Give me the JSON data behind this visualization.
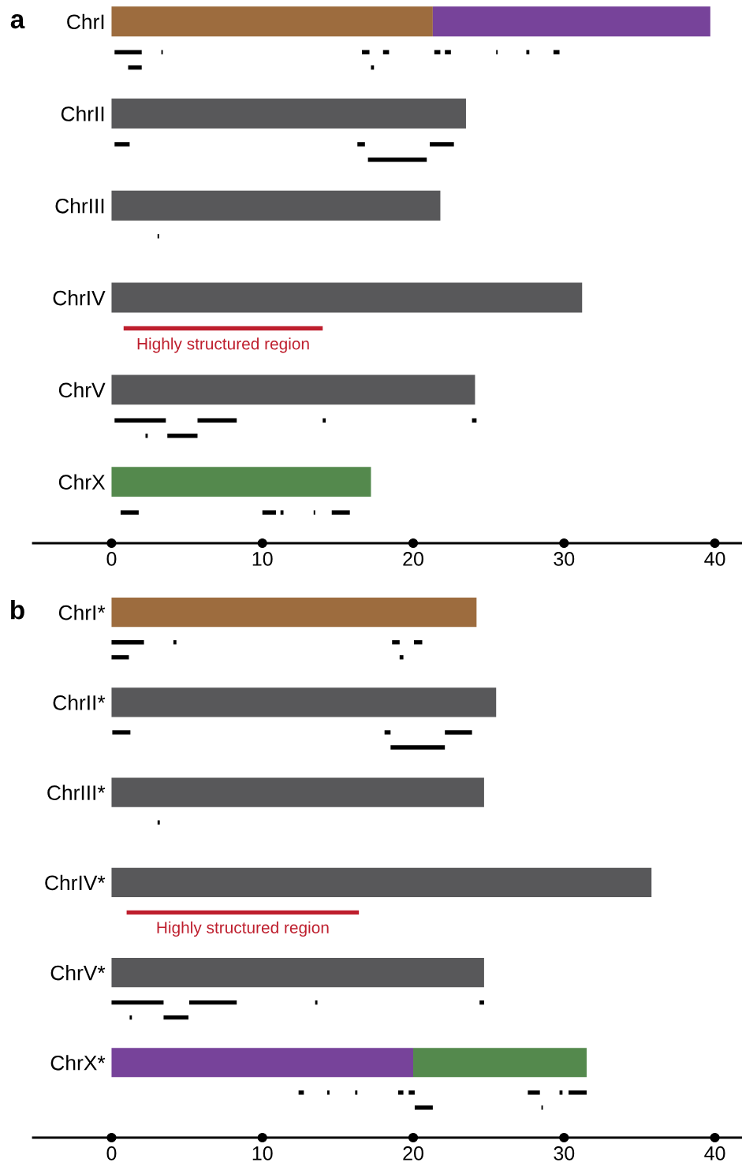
{
  "chart_data": [
    {
      "type": "bar",
      "orientation": "horizontal",
      "title": "a",
      "categories": [
        "ChrI",
        null,
        null,
        null,
        null,
        null,
        "ChrII",
        null,
        null,
        null,
        null,
        null,
        "ChrIII",
        null,
        null,
        null,
        null,
        null,
        "ChrIV",
        null,
        null,
        null,
        null,
        null,
        "ChrV",
        null,
        null,
        null,
        null,
        null,
        "ChrX",
        null,
        null
      ],
      "xlim": [
        -5.2,
        41.8
      ],
      "xticks": [
        0,
        10,
        20,
        30,
        40
      ],
      "series": [
        {
          "color": "#9d6c3e",
          "base": [
            0,
            null,
            null,
            null,
            null,
            null,
            null,
            null,
            null,
            null,
            null,
            null,
            null,
            null,
            null,
            null,
            null,
            null,
            null,
            null,
            null,
            null,
            null,
            null,
            null,
            null,
            null,
            null,
            null,
            null,
            null,
            null,
            null
          ],
          "values": [
            21.3,
            null,
            null,
            null,
            null,
            null,
            null,
            null,
            null,
            null,
            null,
            null,
            null,
            null,
            null,
            null,
            null,
            null,
            null,
            null,
            null,
            null,
            null,
            null,
            null,
            null,
            null,
            null,
            null,
            null,
            null,
            null,
            null
          ]
        },
        {
          "color": "#77439a",
          "base": [
            21.3,
            null,
            null,
            null,
            null,
            null,
            null,
            null,
            null,
            null,
            null,
            null,
            null,
            null,
            null,
            null,
            null,
            null,
            null,
            null,
            null,
            null,
            null,
            null,
            null,
            null,
            null,
            null,
            null,
            null,
            null,
            null,
            null
          ],
          "values": [
            18.4,
            null,
            null,
            null,
            null,
            null,
            null,
            null,
            null,
            null,
            null,
            null,
            null,
            null,
            null,
            null,
            null,
            null,
            null,
            null,
            null,
            null,
            null,
            null,
            null,
            null,
            null,
            null,
            null,
            null,
            null,
            null,
            null
          ]
        },
        {
          "color": "#58585a",
          "base": [
            null,
            null,
            null,
            null,
            null,
            null,
            0,
            null,
            null,
            null,
            null,
            null,
            0,
            null,
            null,
            null,
            null,
            null,
            0,
            null,
            null,
            null,
            null,
            null,
            0,
            null,
            null,
            null,
            null,
            null,
            null,
            null,
            null
          ],
          "values": [
            null,
            null,
            null,
            null,
            null,
            null,
            23.5,
            null,
            null,
            null,
            null,
            null,
            21.8,
            null,
            null,
            null,
            null,
            null,
            31.2,
            null,
            null,
            null,
            null,
            null,
            24.1,
            null,
            null,
            null,
            null,
            null,
            null,
            null,
            null
          ]
        },
        {
          "color": "#54894d",
          "base": [
            null,
            null,
            null,
            null,
            null,
            null,
            null,
            null,
            null,
            null,
            null,
            null,
            null,
            null,
            null,
            null,
            null,
            null,
            null,
            null,
            null,
            null,
            null,
            null,
            null,
            null,
            null,
            null,
            null,
            null,
            0,
            null,
            null
          ],
          "values": [
            null,
            null,
            null,
            null,
            null,
            null,
            null,
            null,
            null,
            null,
            null,
            null,
            null,
            null,
            null,
            null,
            null,
            null,
            null,
            null,
            null,
            null,
            null,
            null,
            null,
            null,
            null,
            null,
            null,
            null,
            17.2,
            null,
            null
          ]
        },
        {
          "name": "Highly structured region",
          "color": "#be1e2d",
          "base": [
            null,
            null,
            null,
            null,
            null,
            null,
            null,
            null,
            null,
            null,
            null,
            null,
            null,
            null,
            null,
            null,
            null,
            null,
            null,
            null,
            0.8,
            null,
            null,
            null,
            null,
            null,
            null,
            null,
            null,
            null,
            null,
            null,
            null
          ],
          "values": [
            null,
            null,
            null,
            null,
            null,
            null,
            null,
            null,
            null,
            null,
            null,
            null,
            null,
            null,
            null,
            null,
            null,
            null,
            null,
            null,
            13.2,
            null,
            null,
            null,
            null,
            null,
            null,
            null,
            null,
            null,
            null,
            null,
            null
          ]
        },
        {
          "color": "#000000",
          "base": [
            null,
            null,
            0.2,
            1.1,
            null,
            null,
            null,
            null,
            0.2,
            17.0,
            null,
            null,
            null,
            null,
            3.05,
            null,
            null,
            null,
            null,
            null,
            null,
            null,
            null,
            null,
            null,
            null,
            0.2,
            2.25,
            null,
            null,
            null,
            null,
            0.6
          ],
          "values": [
            null,
            null,
            1.8,
            0.9,
            null,
            null,
            null,
            null,
            1.0,
            3.9,
            null,
            null,
            null,
            null,
            0.1,
            null,
            null,
            null,
            null,
            null,
            null,
            null,
            null,
            null,
            null,
            null,
            3.4,
            0.15,
            null,
            null,
            null,
            null,
            1.2
          ]
        },
        {
          "color": "#000000",
          "base": [
            null,
            null,
            3.3,
            17.2,
            null,
            null,
            null,
            null,
            16.3,
            null,
            null,
            null,
            null,
            null,
            null,
            null,
            null,
            null,
            null,
            null,
            null,
            null,
            null,
            null,
            null,
            null,
            5.7,
            3.7,
            null,
            null,
            null,
            null,
            10.0
          ],
          "values": [
            null,
            null,
            0.1,
            0.2,
            null,
            null,
            null,
            null,
            0.5,
            null,
            null,
            null,
            null,
            null,
            null,
            null,
            null,
            null,
            null,
            null,
            null,
            null,
            null,
            null,
            null,
            null,
            2.6,
            2.0,
            null,
            null,
            null,
            null,
            0.9
          ]
        },
        {
          "color": "#000000",
          "base": [
            null,
            null,
            16.6,
            null,
            null,
            null,
            null,
            null,
            21.1,
            null,
            null,
            null,
            null,
            null,
            null,
            null,
            null,
            null,
            null,
            null,
            null,
            null,
            null,
            null,
            null,
            null,
            14.0,
            null,
            null,
            null,
            null,
            null,
            11.2
          ],
          "values": [
            null,
            null,
            0.5,
            null,
            null,
            null,
            null,
            null,
            1.6,
            null,
            null,
            null,
            null,
            null,
            null,
            null,
            null,
            null,
            null,
            null,
            null,
            null,
            null,
            null,
            null,
            null,
            0.2,
            null,
            null,
            null,
            null,
            null,
            0.2
          ]
        },
        {
          "color": "#000000",
          "base": [
            null,
            null,
            18.0,
            null,
            null,
            null,
            null,
            null,
            null,
            null,
            null,
            null,
            null,
            null,
            null,
            null,
            null,
            null,
            null,
            null,
            null,
            null,
            null,
            null,
            null,
            null,
            23.9,
            null,
            null,
            null,
            null,
            null,
            13.4
          ],
          "values": [
            null,
            null,
            0.4,
            null,
            null,
            null,
            null,
            null,
            null,
            null,
            null,
            null,
            null,
            null,
            null,
            null,
            null,
            null,
            null,
            null,
            null,
            null,
            null,
            null,
            null,
            null,
            0.3,
            null,
            null,
            null,
            null,
            null,
            0.1
          ]
        },
        {
          "color": "#000000",
          "base": [
            null,
            null,
            21.4,
            null,
            null,
            null,
            null,
            null,
            null,
            null,
            null,
            null,
            null,
            null,
            null,
            null,
            null,
            null,
            null,
            null,
            null,
            null,
            null,
            null,
            null,
            null,
            null,
            null,
            null,
            null,
            null,
            null,
            14.6
          ],
          "values": [
            null,
            null,
            0.4,
            null,
            null,
            null,
            null,
            null,
            null,
            null,
            null,
            null,
            null,
            null,
            null,
            null,
            null,
            null,
            null,
            null,
            null,
            null,
            null,
            null,
            null,
            null,
            null,
            null,
            null,
            null,
            null,
            null,
            1.2
          ]
        },
        {
          "color": "#000000",
          "base": [
            null,
            null,
            22.1,
            null,
            null,
            null,
            null,
            null,
            null,
            null,
            null,
            null,
            null,
            null,
            null,
            null,
            null,
            null,
            null,
            null,
            null,
            null,
            null,
            null,
            null,
            null,
            null,
            null,
            null,
            null,
            null,
            null,
            null
          ],
          "values": [
            null,
            null,
            0.4,
            null,
            null,
            null,
            null,
            null,
            null,
            null,
            null,
            null,
            null,
            null,
            null,
            null,
            null,
            null,
            null,
            null,
            null,
            null,
            null,
            null,
            null,
            null,
            null,
            null,
            null,
            null,
            null,
            null,
            null
          ]
        },
        {
          "color": "#000000",
          "base": [
            null,
            null,
            25.5,
            null,
            null,
            null,
            null,
            null,
            null,
            null,
            null,
            null,
            null,
            null,
            null,
            null,
            null,
            null,
            null,
            null,
            null,
            null,
            null,
            null,
            null,
            null,
            null,
            null,
            null,
            null,
            null,
            null,
            null
          ],
          "values": [
            null,
            null,
            0.1,
            null,
            null,
            null,
            null,
            null,
            null,
            null,
            null,
            null,
            null,
            null,
            null,
            null,
            null,
            null,
            null,
            null,
            null,
            null,
            null,
            null,
            null,
            null,
            null,
            null,
            null,
            null,
            null,
            null,
            null
          ]
        },
        {
          "color": "#000000",
          "base": [
            null,
            null,
            27.5,
            null,
            null,
            null,
            null,
            null,
            null,
            null,
            null,
            null,
            null,
            null,
            null,
            null,
            null,
            null,
            null,
            null,
            null,
            null,
            null,
            null,
            null,
            null,
            null,
            null,
            null,
            null,
            null,
            null,
            null
          ],
          "values": [
            null,
            null,
            0.2,
            null,
            null,
            null,
            null,
            null,
            null,
            null,
            null,
            null,
            null,
            null,
            null,
            null,
            null,
            null,
            null,
            null,
            null,
            null,
            null,
            null,
            null,
            null,
            null,
            null,
            null,
            null,
            null,
            null,
            null
          ]
        },
        {
          "color": "#000000",
          "base": [
            null,
            null,
            29.3,
            null,
            null,
            null,
            null,
            null,
            null,
            null,
            null,
            null,
            null,
            null,
            null,
            null,
            null,
            null,
            null,
            null,
            null,
            null,
            null,
            null,
            null,
            null,
            null,
            null,
            null,
            null,
            null,
            null,
            null
          ],
          "values": [
            null,
            null,
            0.4,
            null,
            null,
            null,
            null,
            null,
            null,
            null,
            null,
            null,
            null,
            null,
            null,
            null,
            null,
            null,
            null,
            null,
            null,
            null,
            null,
            null,
            null,
            null,
            null,
            null,
            null,
            null,
            null,
            null,
            null
          ]
        }
      ]
    },
    {
      "type": "bar",
      "orientation": "horizontal",
      "title": "b",
      "categories": [
        "ChrI*",
        null,
        null,
        null,
        null,
        null,
        "ChrII*",
        null,
        null,
        null,
        null,
        null,
        "ChrIII*",
        null,
        null,
        null,
        null,
        null,
        "ChrIV*",
        null,
        null,
        null,
        null,
        null,
        "ChrV*",
        null,
        null,
        null,
        null,
        null,
        "ChrX*",
        null,
        null,
        null
      ],
      "xlim": [
        -5.2,
        41.8
      ],
      "xticks": [
        0,
        10,
        20,
        30,
        40
      ],
      "series": [
        {
          "color": "#9d6c3e",
          "base": [
            0,
            null,
            null,
            null,
            null,
            null,
            null,
            null,
            null,
            null,
            null,
            null,
            null,
            null,
            null,
            null,
            null,
            null,
            null,
            null,
            null,
            null,
            null,
            null,
            null,
            null,
            null,
            null,
            null,
            null,
            null,
            null,
            null,
            null
          ],
          "values": [
            24.2,
            null,
            null,
            null,
            null,
            null,
            null,
            null,
            null,
            null,
            null,
            null,
            null,
            null,
            null,
            null,
            null,
            null,
            null,
            null,
            null,
            null,
            null,
            null,
            null,
            null,
            null,
            null,
            null,
            null,
            null,
            null,
            null,
            null
          ]
        },
        {
          "color": "#58585a",
          "base": [
            null,
            null,
            null,
            null,
            null,
            null,
            0,
            null,
            null,
            null,
            null,
            null,
            0,
            null,
            null,
            null,
            null,
            null,
            0,
            null,
            null,
            null,
            null,
            null,
            0,
            null,
            null,
            null,
            null,
            null,
            null,
            null,
            null,
            null
          ],
          "values": [
            null,
            null,
            null,
            null,
            null,
            null,
            25.5,
            null,
            null,
            null,
            null,
            null,
            24.7,
            null,
            null,
            null,
            null,
            null,
            35.8,
            null,
            null,
            null,
            null,
            null,
            24.7,
            null,
            null,
            null,
            null,
            null,
            null,
            null,
            null,
            null
          ]
        },
        {
          "color": "#77439a",
          "base": [
            null,
            null,
            null,
            null,
            null,
            null,
            null,
            null,
            null,
            null,
            null,
            null,
            null,
            null,
            null,
            null,
            null,
            null,
            null,
            null,
            null,
            null,
            null,
            null,
            null,
            null,
            null,
            null,
            null,
            null,
            0,
            null,
            null,
            null
          ],
          "values": [
            null,
            null,
            null,
            null,
            null,
            null,
            null,
            null,
            null,
            null,
            null,
            null,
            null,
            null,
            null,
            null,
            null,
            null,
            null,
            null,
            null,
            null,
            null,
            null,
            null,
            null,
            null,
            null,
            null,
            null,
            20.0,
            null,
            null,
            null
          ]
        },
        {
          "color": "#54894d",
          "base": [
            null,
            null,
            null,
            null,
            null,
            null,
            null,
            null,
            null,
            null,
            null,
            null,
            null,
            null,
            null,
            null,
            null,
            null,
            null,
            null,
            null,
            null,
            null,
            null,
            null,
            null,
            null,
            null,
            null,
            null,
            20.0,
            null,
            null,
            null
          ],
          "values": [
            null,
            null,
            null,
            null,
            null,
            null,
            null,
            null,
            null,
            null,
            null,
            null,
            null,
            null,
            null,
            null,
            null,
            null,
            null,
            null,
            null,
            null,
            null,
            null,
            null,
            null,
            null,
            null,
            null,
            null,
            11.5,
            null,
            null,
            null
          ]
        },
        {
          "name": "Highly structured region",
          "color": "#be1e2d",
          "base": [
            null,
            null,
            null,
            null,
            null,
            null,
            null,
            null,
            null,
            null,
            null,
            null,
            null,
            null,
            null,
            null,
            null,
            null,
            null,
            null,
            1.0,
            null,
            null,
            null,
            null,
            null,
            null,
            null,
            null,
            null,
            null,
            null,
            null,
            null
          ],
          "values": [
            null,
            null,
            null,
            null,
            null,
            null,
            null,
            null,
            null,
            null,
            null,
            null,
            null,
            null,
            null,
            null,
            null,
            null,
            null,
            null,
            15.4,
            null,
            null,
            null,
            null,
            null,
            null,
            null,
            null,
            null,
            null,
            null,
            null,
            null
          ]
        },
        {
          "color": "#000000",
          "base": [
            null,
            null,
            0,
            0,
            null,
            null,
            null,
            null,
            0.05,
            18.5,
            null,
            null,
            null,
            null,
            3.05,
            null,
            null,
            null,
            null,
            null,
            null,
            null,
            null,
            null,
            null,
            null,
            0,
            1.2,
            null,
            null,
            null,
            null,
            12.4,
            20.1
          ],
          "values": [
            null,
            null,
            2.15,
            1.15,
            null,
            null,
            null,
            null,
            1.2,
            3.6,
            null,
            null,
            null,
            null,
            0.15,
            null,
            null,
            null,
            null,
            null,
            null,
            null,
            null,
            null,
            null,
            null,
            3.45,
            0.15,
            null,
            null,
            null,
            null,
            0.35,
            1.2
          ]
        },
        {
          "color": "#000000",
          "base": [
            null,
            null,
            4.1,
            19.1,
            null,
            null,
            null,
            null,
            18.1,
            null,
            null,
            null,
            null,
            null,
            null,
            null,
            null,
            null,
            null,
            null,
            null,
            null,
            null,
            null,
            null,
            null,
            5.15,
            3.45,
            null,
            null,
            null,
            null,
            14.3,
            28.5
          ],
          "values": [
            null,
            null,
            0.2,
            0.25,
            null,
            null,
            null,
            null,
            0.4,
            null,
            null,
            null,
            null,
            null,
            null,
            null,
            null,
            null,
            null,
            null,
            null,
            null,
            null,
            null,
            null,
            null,
            3.15,
            1.65,
            null,
            null,
            null,
            null,
            0.15,
            0.1
          ]
        },
        {
          "color": "#000000",
          "base": [
            null,
            null,
            18.6,
            null,
            null,
            null,
            null,
            null,
            22.1,
            null,
            null,
            null,
            null,
            null,
            null,
            null,
            null,
            null,
            null,
            null,
            null,
            null,
            null,
            null,
            null,
            null,
            13.5,
            null,
            null,
            null,
            null,
            null,
            16.15,
            null
          ],
          "values": [
            null,
            null,
            0.5,
            null,
            null,
            null,
            null,
            null,
            1.8,
            null,
            null,
            null,
            null,
            null,
            null,
            null,
            null,
            null,
            null,
            null,
            null,
            null,
            null,
            null,
            null,
            null,
            0.15,
            null,
            null,
            null,
            null,
            null,
            0.15,
            null
          ]
        },
        {
          "color": "#000000",
          "base": [
            null,
            null,
            20.05,
            null,
            null,
            null,
            null,
            null,
            null,
            null,
            null,
            null,
            null,
            null,
            null,
            null,
            null,
            null,
            null,
            null,
            null,
            null,
            null,
            null,
            null,
            null,
            24.4,
            null,
            null,
            null,
            null,
            null,
            19.0,
            null
          ],
          "values": [
            null,
            null,
            0.55,
            null,
            null,
            null,
            null,
            null,
            null,
            null,
            null,
            null,
            null,
            null,
            null,
            null,
            null,
            null,
            null,
            null,
            null,
            null,
            null,
            null,
            null,
            null,
            0.3,
            null,
            null,
            null,
            null,
            null,
            0.35,
            null
          ]
        },
        {
          "color": "#000000",
          "base": [
            null,
            null,
            null,
            null,
            null,
            null,
            null,
            null,
            null,
            null,
            null,
            null,
            null,
            null,
            null,
            null,
            null,
            null,
            null,
            null,
            null,
            null,
            null,
            null,
            null,
            null,
            null,
            null,
            null,
            null,
            null,
            null,
            19.7,
            null
          ],
          "values": [
            null,
            null,
            null,
            null,
            null,
            null,
            null,
            null,
            null,
            null,
            null,
            null,
            null,
            null,
            null,
            null,
            null,
            null,
            null,
            null,
            null,
            null,
            null,
            null,
            null,
            null,
            null,
            null,
            null,
            null,
            null,
            null,
            0.4,
            null
          ]
        },
        {
          "color": "#000000",
          "base": [
            null,
            null,
            null,
            null,
            null,
            null,
            null,
            null,
            null,
            null,
            null,
            null,
            null,
            null,
            null,
            null,
            null,
            null,
            null,
            null,
            null,
            null,
            null,
            null,
            null,
            null,
            null,
            null,
            null,
            null,
            null,
            null,
            27.6,
            null
          ],
          "values": [
            null,
            null,
            null,
            null,
            null,
            null,
            null,
            null,
            null,
            null,
            null,
            null,
            null,
            null,
            null,
            null,
            null,
            null,
            null,
            null,
            null,
            null,
            null,
            null,
            null,
            null,
            null,
            null,
            null,
            null,
            null,
            null,
            0.8,
            null
          ]
        },
        {
          "color": "#000000",
          "base": [
            null,
            null,
            null,
            null,
            null,
            null,
            null,
            null,
            null,
            null,
            null,
            null,
            null,
            null,
            null,
            null,
            null,
            null,
            null,
            null,
            null,
            null,
            null,
            null,
            null,
            null,
            null,
            null,
            null,
            null,
            null,
            null,
            29.7,
            null
          ],
          "values": [
            null,
            null,
            null,
            null,
            null,
            null,
            null,
            null,
            null,
            null,
            null,
            null,
            null,
            null,
            null,
            null,
            null,
            null,
            null,
            null,
            null,
            null,
            null,
            null,
            null,
            null,
            null,
            null,
            null,
            null,
            null,
            null,
            0.2,
            null
          ]
        },
        {
          "color": "#000000",
          "base": [
            null,
            null,
            null,
            null,
            null,
            null,
            null,
            null,
            null,
            null,
            null,
            null,
            null,
            null,
            null,
            null,
            null,
            null,
            null,
            null,
            null,
            null,
            null,
            null,
            null,
            null,
            null,
            null,
            null,
            null,
            null,
            null,
            30.3,
            null
          ],
          "values": [
            null,
            null,
            null,
            null,
            null,
            null,
            null,
            null,
            null,
            null,
            null,
            null,
            null,
            null,
            null,
            null,
            null,
            null,
            null,
            null,
            null,
            null,
            null,
            null,
            null,
            null,
            null,
            null,
            null,
            null,
            null,
            null,
            1.2,
            null
          ]
        }
      ]
    }
  ]
}
